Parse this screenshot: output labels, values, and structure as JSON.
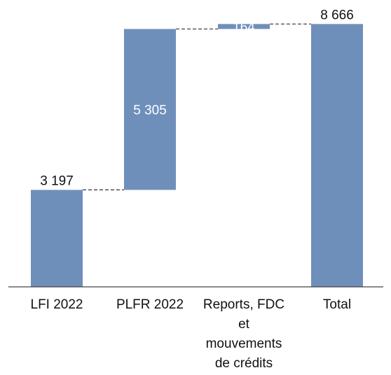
{
  "chart_data": {
    "type": "bar",
    "subtype": "waterfall",
    "categories": [
      [
        "LFI 2022"
      ],
      [
        "PLFR 2022"
      ],
      [
        "Reports, FDC",
        "et",
        "mouvements",
        "de crédits"
      ],
      [
        "Total"
      ]
    ],
    "values": [
      3197,
      5305,
      164,
      8666
    ],
    "value_labels": [
      "3 197",
      "5 305",
      "164",
      "8 666"
    ],
    "label_positions": [
      "above",
      "inside",
      "inside",
      "above"
    ],
    "bar_kinds": [
      "total",
      "increment",
      "increment",
      "total"
    ],
    "ylim": [
      0,
      8800
    ],
    "connectors": "dashed",
    "grid": false,
    "colors": {
      "bar": "#6F8FBB",
      "inside_label": "#ffffff",
      "outside_label": "#111111",
      "axis": "#444444",
      "connector": "#333333"
    }
  }
}
